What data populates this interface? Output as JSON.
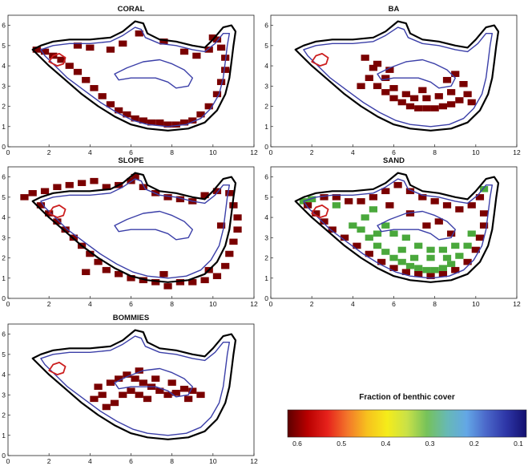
{
  "chart_data": {
    "type": "heatmap",
    "panels": [
      {
        "title": "CORAL",
        "xlim": [
          0,
          12
        ],
        "ylim": [
          0,
          6.5
        ],
        "x_ticks": [
          "0",
          "2",
          "4",
          "6",
          "8",
          "10",
          "12"
        ],
        "y_ticks": [
          "0",
          "1",
          "2",
          "3",
          "4",
          "5",
          "6"
        ],
        "cells": [
          [
            1.4,
            4.8
          ],
          [
            1.8,
            4.7
          ],
          [
            2.2,
            4.5
          ],
          [
            2.6,
            4.3
          ],
          [
            3.0,
            4.0
          ],
          [
            3.4,
            3.7
          ],
          [
            3.8,
            3.3
          ],
          [
            4.2,
            2.9
          ],
          [
            4.6,
            2.5
          ],
          [
            5.0,
            2.1
          ],
          [
            5.4,
            1.8
          ],
          [
            5.8,
            1.6
          ],
          [
            6.2,
            1.4
          ],
          [
            6.6,
            1.3
          ],
          [
            7.0,
            1.2
          ],
          [
            7.4,
            1.2
          ],
          [
            7.8,
            1.1
          ],
          [
            8.2,
            1.1
          ],
          [
            8.6,
            1.2
          ],
          [
            9.0,
            1.3
          ],
          [
            9.4,
            1.6
          ],
          [
            9.8,
            2.0
          ],
          [
            10.2,
            2.6
          ],
          [
            10.4,
            3.2
          ],
          [
            10.6,
            3.8
          ],
          [
            10.6,
            4.4
          ],
          [
            10.4,
            4.9
          ],
          [
            10.2,
            5.3
          ],
          [
            3.4,
            5.0
          ],
          [
            4.0,
            4.9
          ],
          [
            5.0,
            4.8
          ],
          [
            5.6,
            5.1
          ],
          [
            6.4,
            5.6
          ],
          [
            7.6,
            5.2
          ],
          [
            8.6,
            4.7
          ],
          [
            9.2,
            4.5
          ],
          [
            9.8,
            4.8
          ],
          [
            10.0,
            5.4
          ]
        ],
        "value": 0.6
      },
      {
        "title": "BA",
        "xlim": [
          0,
          12
        ],
        "ylim": [
          0,
          6.5
        ],
        "x_ticks": [
          "0",
          "2",
          "4",
          "6",
          "8",
          "10",
          "12"
        ],
        "y_ticks": [
          "0",
          "1",
          "2",
          "3",
          "4",
          "5",
          "6"
        ],
        "cells": [
          [
            4.6,
            4.4
          ],
          [
            5.0,
            3.9
          ],
          [
            4.8,
            3.4
          ],
          [
            5.2,
            3.0
          ],
          [
            5.6,
            2.7
          ],
          [
            6.0,
            2.4
          ],
          [
            6.4,
            2.2
          ],
          [
            6.8,
            2.0
          ],
          [
            7.2,
            1.9
          ],
          [
            7.6,
            1.9
          ],
          [
            8.0,
            1.9
          ],
          [
            8.4,
            2.0
          ],
          [
            8.8,
            2.1
          ],
          [
            9.2,
            2.3
          ],
          [
            9.6,
            2.6
          ],
          [
            9.4,
            3.1
          ],
          [
            5.6,
            3.4
          ],
          [
            6.0,
            2.9
          ],
          [
            6.6,
            2.6
          ],
          [
            7.0,
            2.4
          ],
          [
            7.6,
            2.4
          ],
          [
            8.2,
            2.5
          ],
          [
            8.8,
            2.7
          ],
          [
            5.2,
            4.1
          ],
          [
            5.8,
            3.8
          ],
          [
            8.6,
            3.3
          ],
          [
            9.0,
            3.6
          ],
          [
            4.4,
            3.0
          ],
          [
            9.8,
            2.2
          ],
          [
            7.4,
            2.8
          ]
        ],
        "value": 0.6
      },
      {
        "title": "SLOPE",
        "xlim": [
          0,
          12
        ],
        "ylim": [
          0,
          6.5
        ],
        "x_ticks": [
          "0",
          "2",
          "4",
          "6",
          "8",
          "10",
          "12"
        ],
        "y_ticks": [
          "0",
          "1",
          "2",
          "3",
          "4",
          "5",
          "6"
        ],
        "cells": [
          [
            0.8,
            5.0
          ],
          [
            1.2,
            5.2
          ],
          [
            1.8,
            5.3
          ],
          [
            2.4,
            5.5
          ],
          [
            3.0,
            5.6
          ],
          [
            3.6,
            5.7
          ],
          [
            4.2,
            5.8
          ],
          [
            4.8,
            5.5
          ],
          [
            5.4,
            5.6
          ],
          [
            6.0,
            5.8
          ],
          [
            6.6,
            5.5
          ],
          [
            7.2,
            5.2
          ],
          [
            7.8,
            5.0
          ],
          [
            8.4,
            4.9
          ],
          [
            9.0,
            4.8
          ],
          [
            9.6,
            5.1
          ],
          [
            10.2,
            5.3
          ],
          [
            10.8,
            5.2
          ],
          [
            11.0,
            4.6
          ],
          [
            11.2,
            4.0
          ],
          [
            11.2,
            3.4
          ],
          [
            11.0,
            2.8
          ],
          [
            10.8,
            2.2
          ],
          [
            10.6,
            1.6
          ],
          [
            10.2,
            1.1
          ],
          [
            9.6,
            0.9
          ],
          [
            9.0,
            0.8
          ],
          [
            8.4,
            0.8
          ],
          [
            7.8,
            0.6
          ],
          [
            7.2,
            0.8
          ],
          [
            6.6,
            0.9
          ],
          [
            6.0,
            1.0
          ],
          [
            5.4,
            1.2
          ],
          [
            4.8,
            1.4
          ],
          [
            4.4,
            1.8
          ],
          [
            4.0,
            2.2
          ],
          [
            3.6,
            2.6
          ],
          [
            3.2,
            3.0
          ],
          [
            2.8,
            3.4
          ],
          [
            2.4,
            3.8
          ],
          [
            2.0,
            4.2
          ],
          [
            1.6,
            4.6
          ],
          [
            3.8,
            1.3
          ],
          [
            7.6,
            1.2
          ],
          [
            9.8,
            1.4
          ],
          [
            10.4,
            3.6
          ],
          [
            6.2,
            6.0
          ]
        ],
        "value": 0.6
      },
      {
        "title": "SAND",
        "xlim": [
          0,
          12
        ],
        "ylim": [
          0,
          6.5
        ],
        "x_ticks": [
          "0",
          "2",
          "4",
          "6",
          "8",
          "10",
          "12"
        ],
        "y_ticks": [
          "0",
          "1",
          "2",
          "3",
          "4",
          "5",
          "6"
        ],
        "green_cells": [
          [
            4.0,
            3.6
          ],
          [
            4.4,
            3.4
          ],
          [
            4.8,
            3.0
          ],
          [
            5.2,
            2.6
          ],
          [
            5.6,
            2.3
          ],
          [
            6.0,
            2.0
          ],
          [
            6.4,
            1.8
          ],
          [
            6.8,
            1.6
          ],
          [
            7.2,
            1.5
          ],
          [
            7.6,
            1.4
          ],
          [
            8.0,
            1.4
          ],
          [
            8.4,
            1.5
          ],
          [
            8.8,
            1.7
          ],
          [
            9.2,
            2.1
          ],
          [
            9.6,
            2.6
          ],
          [
            9.8,
            3.2
          ],
          [
            5.6,
            3.6
          ],
          [
            6.0,
            3.2
          ],
          [
            6.6,
            3.0
          ],
          [
            7.2,
            2.6
          ],
          [
            7.8,
            2.4
          ],
          [
            8.4,
            2.4
          ],
          [
            9.0,
            2.6
          ],
          [
            6.4,
            2.4
          ],
          [
            7.0,
            2.0
          ],
          [
            7.8,
            2.0
          ],
          [
            8.6,
            2.0
          ],
          [
            5.2,
            3.2
          ],
          [
            4.6,
            4.0
          ],
          [
            5.0,
            4.4
          ],
          [
            2.0,
            4.9
          ],
          [
            3.2,
            4.6
          ],
          [
            10.4,
            5.4
          ],
          [
            1.6,
            4.8
          ]
        ],
        "red_cells": [
          [
            2.6,
            5.0
          ],
          [
            3.2,
            5.0
          ],
          [
            3.8,
            4.8
          ],
          [
            4.4,
            4.8
          ],
          [
            5.0,
            5.0
          ],
          [
            5.6,
            5.3
          ],
          [
            6.2,
            5.6
          ],
          [
            6.8,
            5.3
          ],
          [
            7.4,
            5.0
          ],
          [
            8.0,
            4.8
          ],
          [
            8.6,
            4.6
          ],
          [
            9.2,
            4.4
          ],
          [
            9.8,
            4.6
          ],
          [
            10.2,
            5.0
          ],
          [
            10.4,
            4.2
          ],
          [
            10.4,
            3.6
          ],
          [
            10.2,
            3.0
          ],
          [
            10.0,
            2.4
          ],
          [
            9.6,
            1.8
          ],
          [
            9.0,
            1.4
          ],
          [
            8.4,
            1.2
          ],
          [
            7.8,
            1.1
          ],
          [
            7.2,
            1.2
          ],
          [
            6.6,
            1.3
          ],
          [
            6.0,
            1.5
          ],
          [
            5.4,
            1.8
          ],
          [
            4.8,
            2.2
          ],
          [
            4.2,
            2.6
          ],
          [
            3.6,
            3.0
          ],
          [
            3.0,
            3.4
          ],
          [
            2.6,
            3.8
          ],
          [
            2.2,
            4.2
          ],
          [
            1.8,
            4.6
          ],
          [
            7.6,
            3.6
          ],
          [
            8.2,
            3.8
          ],
          [
            6.8,
            4.2
          ],
          [
            8.8,
            3.2
          ],
          [
            5.8,
            4.6
          ]
        ],
        "value": 0.6
      },
      {
        "title": "BOMMIES",
        "xlim": [
          0,
          12
        ],
        "ylim": [
          0,
          6.5
        ],
        "x_ticks": [
          "0",
          "2",
          "4",
          "6",
          "8",
          "10",
          "12"
        ],
        "y_ticks": [
          "0",
          "1",
          "2",
          "3",
          "4",
          "5",
          "6"
        ],
        "cells": [
          [
            4.6,
            3.0
          ],
          [
            4.4,
            3.4
          ],
          [
            4.2,
            2.8
          ],
          [
            5.0,
            3.6
          ],
          [
            5.4,
            3.8
          ],
          [
            5.8,
            4.0
          ],
          [
            6.2,
            3.8
          ],
          [
            6.6,
            3.6
          ],
          [
            7.0,
            3.4
          ],
          [
            7.4,
            3.2
          ],
          [
            7.8,
            3.0
          ],
          [
            8.2,
            3.1
          ],
          [
            8.6,
            3.3
          ],
          [
            9.0,
            3.2
          ],
          [
            9.4,
            3.0
          ],
          [
            6.0,
            3.2
          ],
          [
            6.4,
            3.0
          ],
          [
            6.8,
            2.8
          ],
          [
            5.6,
            3.0
          ],
          [
            5.2,
            2.6
          ],
          [
            8.0,
            3.6
          ],
          [
            7.2,
            3.8
          ],
          [
            6.4,
            4.2
          ],
          [
            4.8,
            2.4
          ],
          [
            8.8,
            2.8
          ]
        ],
        "value": 0.6
      }
    ],
    "colorbar": {
      "title": "Fraction  of benthic cover",
      "ticks": [
        "0.6",
        "0.5",
        "0.4",
        "0.3",
        "0.2",
        "0.1"
      ],
      "range": [
        0.6,
        0.1
      ],
      "colors": [
        "#5c0000",
        "#b80000",
        "#e6221c",
        "#f3762a",
        "#f7c11e",
        "#f5ec1a",
        "#c9e148",
        "#76c25a",
        "#67b9b4",
        "#63a7e6",
        "#4a66c9",
        "#2d35a6",
        "#13106f"
      ]
    },
    "colors": {
      "cell": "#7a0000",
      "sand_green": "#4aa83c",
      "outer_contour": "#000000",
      "inner_contour": "#3b3fa8",
      "marker": "#cc1f1f"
    }
  }
}
